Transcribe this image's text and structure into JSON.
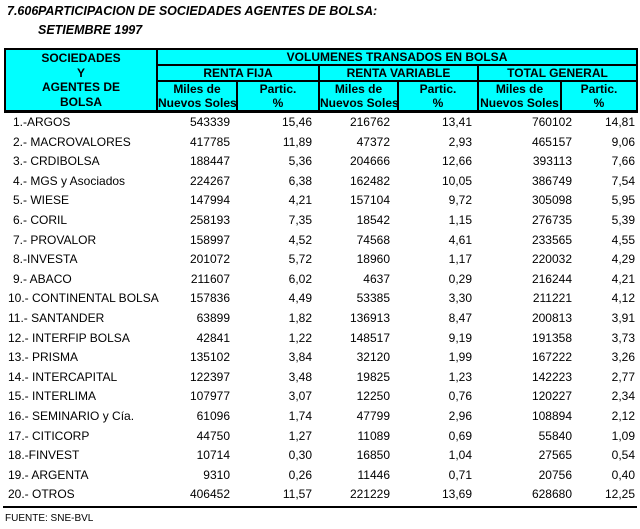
{
  "title": {
    "number": "7.606",
    "text": "PARTICIPACION DE SOCIEDADES AGENTES DE BOLSA:",
    "subtitle": "SETIEMBRE 1997"
  },
  "colors": {
    "header_bg": "#00FFFF",
    "border": "#000000",
    "page_bg": "#FFFFFF"
  },
  "table": {
    "stub_lines": [
      "SOCIEDADES",
      "Y",
      "AGENTES DE",
      "BOLSA"
    ],
    "top_header": "VOLUMENES TRANSADOS EN BOLSA",
    "group_headers": [
      "RENTA FIJA",
      "RENTA VARIABLE",
      "TOTAL GENERAL"
    ],
    "subheaders": {
      "amount_line1": "Miles de",
      "amount_line2": "Nuevos Soles",
      "pct_line1": "Partic.",
      "pct_line2": "%"
    },
    "rows": [
      [
        "1.-ARGOS",
        "543339",
        "15,46",
        "216762",
        "13,41",
        "760102",
        "14,81"
      ],
      [
        "2.- MACROVALORES",
        "417785",
        "11,89",
        "47372",
        "2,93",
        "465157",
        "9,06"
      ],
      [
        "3.- CRDIBOLSA",
        "188447",
        "5,36",
        "204666",
        "12,66",
        "393113",
        "7,66"
      ],
      [
        "4.- MGS y Asociados",
        "224267",
        "6,38",
        "162482",
        "10,05",
        "386749",
        "7,54"
      ],
      [
        "5.- WIESE",
        "147994",
        "4,21",
        "157104",
        "9,72",
        "305098",
        "5,95"
      ],
      [
        "6.- CORIL",
        "258193",
        "7,35",
        "18542",
        "1,15",
        "276735",
        "5,39"
      ],
      [
        "7.- PROVALOR",
        "158997",
        "4,52",
        "74568",
        "4,61",
        "233565",
        "4,55"
      ],
      [
        "8.-INVESTA",
        "201072",
        "5,72",
        "18960",
        "1,17",
        "220032",
        "4,29"
      ],
      [
        "9.- ABACO",
        "211607",
        "6,02",
        "4637",
        "0,29",
        "216244",
        "4,21"
      ],
      [
        "10.- CONTINENTAL BOLSA",
        "157836",
        "4,49",
        "53385",
        "3,30",
        "211221",
        "4,12"
      ],
      [
        "11.- SANTANDER",
        "63899",
        "1,82",
        "136913",
        "8,47",
        "200813",
        "3,91"
      ],
      [
        "12.- INTERFIP BOLSA",
        "42841",
        "1,22",
        "148517",
        "9,19",
        "191358",
        "3,73"
      ],
      [
        "13.- PRISMA",
        "135102",
        "3,84",
        "32120",
        "1,99",
        "167222",
        "3,26"
      ],
      [
        "14.- INTERCAPITAL",
        "122397",
        "3,48",
        "19825",
        "1,23",
        "142223",
        "2,77"
      ],
      [
        "15.- INTERLIMA",
        "107977",
        "3,07",
        "12250",
        "0,76",
        "120227",
        "2,34"
      ],
      [
        "16.- SEMINARIO y Cía.",
        "61096",
        "1,74",
        "47799",
        "2,96",
        "108894",
        "2,12"
      ],
      [
        "17.- CITICORP",
        "44750",
        "1,27",
        "11089",
        "0,69",
        "55840",
        "1,09"
      ],
      [
        "18.-FINVEST",
        "10714",
        "0,30",
        "16850",
        "1,04",
        "27565",
        "0,54"
      ],
      [
        "19.- ARGENTA",
        "9310",
        "0,26",
        "11446",
        "0,71",
        "20756",
        "0,40"
      ],
      [
        "20.- OTROS",
        "406452",
        "11,57",
        "221229",
        "13,69",
        "628680",
        "12,25"
      ]
    ]
  },
  "footer": {
    "source": "FUENTE: SNE-BVL"
  }
}
